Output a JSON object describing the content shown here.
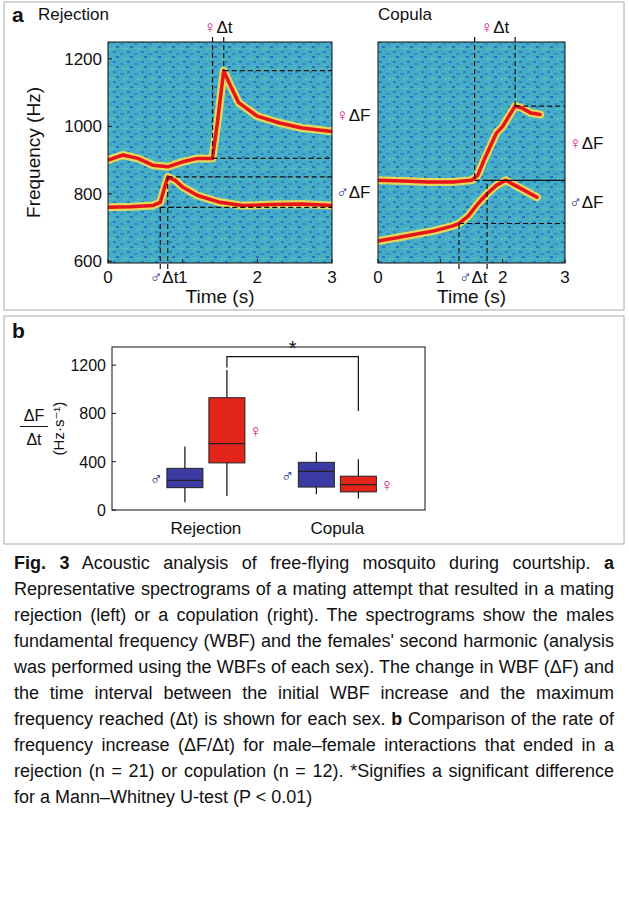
{
  "chart_data": [
    {
      "type": "spectrogram",
      "panel": "a",
      "title": "Rejection",
      "x_label": "Time (s)",
      "y_label": "Frequency (Hz)",
      "xlim": [
        0,
        3
      ],
      "xticks": [
        0,
        1,
        2,
        3
      ],
      "ylim": [
        595,
        1250
      ],
      "yticks": [
        600,
        800,
        1000,
        1200
      ],
      "series": [
        {
          "color": "#e8141c",
          "x": [
            0,
            0.2,
            0.4,
            0.6,
            0.8,
            1.0,
            1.2,
            1.4,
            1.47,
            1.55,
            1.62,
            1.75,
            2.0,
            2.3,
            2.6,
            3.0
          ],
          "values": [
            900,
            915,
            905,
            885,
            880,
            895,
            905,
            905,
            1020,
            1165,
            1130,
            1070,
            1030,
            1010,
            995,
            985
          ]
        },
        {
          "color": "#e8141c",
          "x": [
            0,
            0.3,
            0.6,
            0.7,
            0.8,
            0.9,
            1.0,
            1.2,
            1.5,
            1.8,
            2.2,
            2.6,
            3.0
          ],
          "values": [
            760,
            762,
            765,
            775,
            850,
            840,
            820,
            795,
            775,
            765,
            768,
            770,
            765
          ]
        }
      ],
      "annotations": [
        {
          "dt_label": "♀Δt",
          "df_label": "♀ΔF",
          "t": [
            1.4,
            1.55
          ],
          "f": [
            905,
            1165
          ],
          "color": "#d4006a"
        },
        {
          "dt_label": "♂Δt",
          "df_label": "♂ΔF",
          "t": [
            0.7,
            0.8
          ],
          "f": [
            760,
            850
          ],
          "color": "#2b2b8a"
        }
      ]
    },
    {
      "type": "spectrogram",
      "title": "Copula",
      "x_label": "Time (s)",
      "tick_labels": "x",
      "xlim": [
        0,
        3
      ],
      "xticks": [
        0,
        1,
        2,
        3
      ],
      "ylim": [
        595,
        1250
      ],
      "series": [
        {
          "color": "#e8141c",
          "x": [
            0,
            0.4,
            0.8,
            1.2,
            1.5,
            1.6,
            1.7,
            1.8,
            1.9,
            2.0,
            2.1,
            2.2,
            2.3,
            2.45,
            2.6
          ],
          "values": [
            840,
            838,
            835,
            835,
            840,
            855,
            900,
            940,
            980,
            1000,
            1030,
            1060,
            1055,
            1040,
            1035
          ]
        },
        {
          "color": "#e8141c",
          "x": [
            0,
            0.3,
            0.6,
            0.9,
            1.2,
            1.3,
            1.45,
            1.6,
            1.75,
            1.9,
            2.05,
            2.2,
            2.4,
            2.55
          ],
          "values": [
            660,
            670,
            680,
            690,
            705,
            712,
            735,
            770,
            800,
            825,
            840,
            825,
            805,
            790
          ]
        }
      ],
      "annotations": [
        {
          "dt_label": "♀Δt",
          "df_label": "♀ΔF",
          "t": [
            1.55,
            2.2
          ],
          "f": [
            840,
            1060
          ],
          "color": "#d4006a"
        },
        {
          "dt_label": "♂Δt",
          "df_label": "♂ΔF",
          "t": [
            1.3,
            1.75
          ],
          "f": [
            712,
            840
          ],
          "color": "#2b2b8a"
        }
      ]
    },
    {
      "type": "box",
      "panel": "b",
      "y_label": {
        "numerator": "ΔF",
        "denominator": "Δt",
        "units": "(Hz·s⁻¹)"
      },
      "categories": [
        "Rejection",
        "Copula"
      ],
      "ylim": [
        0,
        1350
      ],
      "yticks": [
        0,
        400,
        800,
        1200
      ],
      "series": [
        {
          "name": "♂",
          "color": "#3b3ba3",
          "min": [
            65,
            130
          ],
          "q1": [
            185,
            190
          ],
          "median": [
            245,
            320
          ],
          "q3": [
            345,
            395
          ],
          "max": [
            525,
            480
          ]
        },
        {
          "name": "♀",
          "color": "#e3241b",
          "min": [
            115,
            95
          ],
          "q1": [
            390,
            150
          ],
          "median": [
            550,
            210
          ],
          "q3": [
            930,
            280
          ],
          "max": [
            1160,
            420
          ]
        }
      ],
      "annotations": [
        {
          "label": "*",
          "y": 1270,
          "ends": [
            1180,
            820
          ]
        }
      ]
    }
  ],
  "caption": {
    "label": "Fig. 3",
    "title": "Acoustic analysis of free-flying mosquito during courtship.",
    "parts": [
      {
        "letter": "a",
        "text": "Representative spectrograms of a mating attempt that resulted in a mating rejection (left) or a copulation (right). The spectrograms show the males fundamental frequency (WBF) and the females' second harmonic (analysis was performed using the WBFs of each sex). The change in WBF (ΔF) and the time interval between the initial WBF increase and the maximum frequency reached (Δt) is shown for each sex."
      },
      {
        "letter": "b",
        "text": "Comparison of the rate of frequency increase (ΔF/Δt) for male–female interactions that ended in a rejection (n = 21) or copulation (n = 12). *Signifies a significant difference for a Mann–Whitney U-test (P < 0.01)"
      }
    ]
  }
}
